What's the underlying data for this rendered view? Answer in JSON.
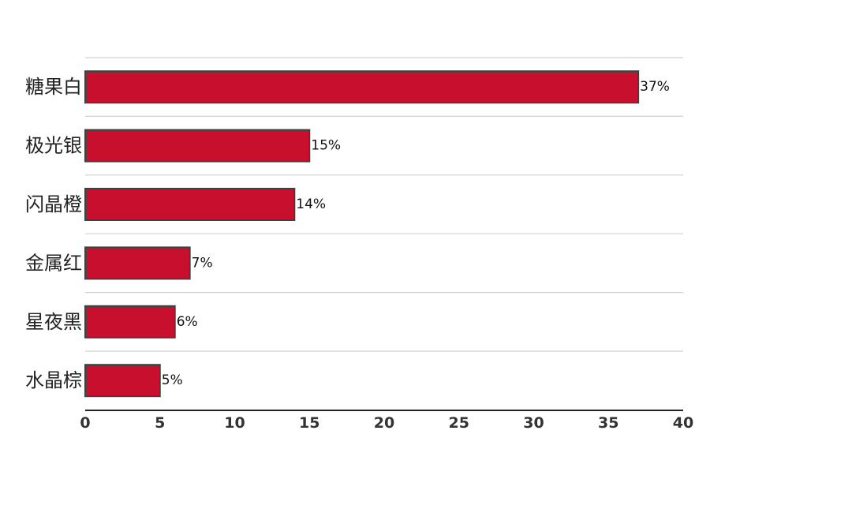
{
  "chart_data": {
    "type": "bar",
    "orientation": "horizontal",
    "categories": [
      "糖果白",
      "极光银",
      "闪晶橙",
      "金属红",
      "星夜黑",
      "水晶棕"
    ],
    "values": [
      37,
      15,
      14,
      7,
      6,
      5
    ],
    "data_labels": [
      "37%",
      "15%",
      "14%",
      "7%",
      "6%",
      "5%"
    ],
    "xlim": [
      0,
      40
    ],
    "x_ticks": [
      0,
      5,
      10,
      15,
      20,
      25,
      30,
      35,
      40
    ],
    "x_tick_labels": [
      "0",
      "5",
      "10",
      "15",
      "20",
      "25",
      "30",
      "35",
      "40"
    ],
    "grid": "horizontal",
    "legend": "none",
    "title": "",
    "xlabel": "",
    "ylabel": ""
  },
  "colors": {
    "bar_fill": "#c8102e",
    "bar_stroke": "#404040",
    "grid": "#d0d0d0",
    "axis": "#222222"
  }
}
